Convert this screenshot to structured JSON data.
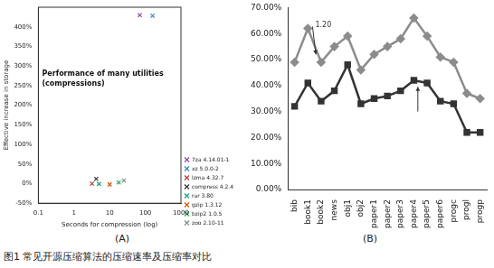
{
  "caption": "图1 常见开源压缩算法的压缩速率及压缩率对比",
  "chart_data": [
    {
      "type": "scatter",
      "panel_label": "(A)",
      "title": [
        "Performance of many utilities",
        "(compressions)"
      ],
      "x_label": "Seconds for compression (log)",
      "y_label": "Effective increase in storage",
      "log": "x",
      "grid": false,
      "legend": "right",
      "xlim": [
        0.1,
        1000
      ],
      "xticks": [
        0.1,
        1,
        10,
        100,
        1000
      ],
      "ylim": [
        -50,
        450
      ],
      "yticks": [
        {
          "value": -50,
          "label": "-50%"
        },
        {
          "value": 0,
          "label": "0%"
        },
        {
          "value": 50,
          "label": "50%"
        },
        {
          "value": 100,
          "label": "100%"
        },
        {
          "value": 150,
          "label": "150%"
        },
        {
          "value": 200,
          "label": "200%"
        },
        {
          "value": 250,
          "label": "250%"
        },
        {
          "value": 300,
          "label": "300%"
        },
        {
          "value": 350,
          "label": "350%"
        },
        {
          "value": 400,
          "label": "400%"
        }
      ],
      "series": [
        {
          "name": "7za 4.14.01-1",
          "color": "#8e44ad",
          "marker": "cross",
          "x": [
            70
          ],
          "values": [
            430
          ]
        },
        {
          "name": "xz 5.0.0-2",
          "color": "#2e86c1",
          "marker": "cross",
          "x": [
            160
          ],
          "values": [
            428
          ]
        },
        {
          "name": "lzma 4.32.7",
          "color": "#c0392b",
          "marker": "cross",
          "x": [
            3.2
          ],
          "values": [
            0
          ]
        },
        {
          "name": "compress 4.2.4",
          "color": "#333333",
          "marker": "cross",
          "x": [
            4.2
          ],
          "values": [
            12
          ]
        },
        {
          "name": "rar 3.80",
          "color": "#16a085",
          "marker": "cross",
          "x": [
            5
          ],
          "values": [
            -1
          ]
        },
        {
          "name": "gzip 1.3.12",
          "color": "#d35400",
          "marker": "cross",
          "x": [
            10
          ],
          "values": [
            -2
          ]
        },
        {
          "name": "bzip2 1.0.5",
          "color": "#27ae60",
          "marker": "cross",
          "x": [
            18
          ],
          "values": [
            3
          ]
        },
        {
          "name": "zoo 2.10-11",
          "color": "#7f8c8d",
          "marker": "cross",
          "x": [
            25
          ],
          "values": [
            8
          ]
        }
      ]
    },
    {
      "type": "line",
      "panel_label": "(B)",
      "grid": false,
      "categories": [
        "bib",
        "book1",
        "book2",
        "news",
        "obj1",
        "obj2",
        "paper1",
        "paper2",
        "paper3",
        "paper4",
        "paper5",
        "paper6",
        "progc",
        "progl",
        "progp"
      ],
      "ylim": [
        0,
        70
      ],
      "yticks": [
        {
          "value": 0,
          "label": "0.00%"
        },
        {
          "value": 10,
          "label": "10.00%"
        },
        {
          "value": 20,
          "label": "20.00%"
        },
        {
          "value": 30,
          "label": "30.00%"
        },
        {
          "value": 40,
          "label": "40.00%"
        },
        {
          "value": 50,
          "label": "50.00%"
        },
        {
          "value": 60,
          "label": "60.00%"
        },
        {
          "value": 70,
          "label": "70.00%"
        }
      ],
      "annotations": [
        "1.20"
      ],
      "series": [
        {
          "color": "#8c8c8c",
          "marker": "diamond",
          "values": [
            49,
            62,
            49,
            55,
            59,
            46,
            52,
            55,
            58,
            66,
            59,
            51,
            49,
            37,
            35
          ]
        },
        {
          "color": "#333333",
          "marker": "square",
          "values": [
            32,
            41,
            34,
            38,
            48,
            33,
            35,
            36,
            38,
            42,
            41,
            34,
            33,
            22,
            22
          ]
        }
      ]
    }
  ]
}
